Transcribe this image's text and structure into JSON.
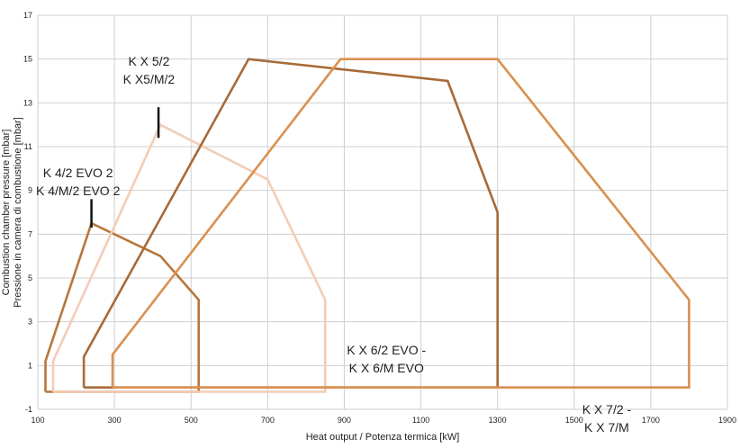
{
  "chart_data": {
    "type": "line",
    "xlabel": "Heat output / Potenza termica [kW]",
    "ylabel": [
      "Combustion chamber pressure [mbar]",
      "Pressione in camera di combustione [mbar]"
    ],
    "xlim": [
      100,
      1900
    ],
    "ylim": [
      -1,
      17
    ],
    "xticks": [
      100,
      300,
      500,
      700,
      900,
      1100,
      1300,
      1500,
      1700,
      1900
    ],
    "yticks": [
      -1,
      1,
      3,
      5,
      7,
      9,
      11,
      13,
      15,
      17
    ],
    "grid": true,
    "series": [
      {
        "name": "K 4/2 EVO 2 / K 4/M/2 EVO 2",
        "label_lines": [
          "K 4/2 EVO 2",
          "K 4/M/2 EVO 2"
        ],
        "color": "#b8773a",
        "points": [
          [
            120,
            -0.2
          ],
          [
            120,
            1.2
          ],
          [
            240,
            7.5
          ],
          [
            420,
            6
          ],
          [
            520,
            4
          ],
          [
            520,
            -0.2
          ],
          [
            120,
            -0.2
          ]
        ]
      },
      {
        "name": "K X 5/2 / K X5/M/2",
        "label_lines": [
          "K X 5/2",
          "K X5/M/2"
        ],
        "color": "#f2cdb7",
        "points": [
          [
            140,
            -0.2
          ],
          [
            140,
            1.2
          ],
          [
            420,
            12
          ],
          [
            700,
            9.5
          ],
          [
            850,
            4
          ],
          [
            850,
            -0.2
          ],
          [
            140,
            -0.2
          ]
        ]
      },
      {
        "name": "K X 6/2 EVO - K X 6/M EVO",
        "label_lines": [
          "K X 6/2 EVO -",
          "K X 6/M EVO"
        ],
        "color": "#a86a38",
        "points": [
          [
            220,
            0
          ],
          [
            220,
            1.4
          ],
          [
            650,
            15
          ],
          [
            1170,
            14
          ],
          [
            1300,
            8
          ],
          [
            1300,
            0
          ],
          [
            220,
            0
          ]
        ]
      },
      {
        "name": "K X 7/2 - K X 7/M",
        "label_lines": [
          "K X 7/2 -",
          "K X 7/M"
        ],
        "color": "#d9904f",
        "points": [
          [
            295,
            0
          ],
          [
            295,
            1.5
          ],
          [
            890,
            15
          ],
          [
            1300,
            15
          ],
          [
            1800,
            4
          ],
          [
            1800,
            0
          ],
          [
            295,
            0
          ]
        ]
      }
    ],
    "label_positions_data": [
      {
        "series": 0,
        "x": 205,
        "y": 9.6,
        "marker": [
          240,
          7.3,
          240,
          8.6
        ]
      },
      {
        "series": 1,
        "x": 390,
        "y": 14.7,
        "marker": [
          415,
          11.4,
          415,
          12.8
        ]
      },
      {
        "series": 2,
        "x": 1010,
        "y": 1.5
      },
      {
        "series": 3,
        "x": 1585,
        "y": -1.2
      }
    ]
  }
}
